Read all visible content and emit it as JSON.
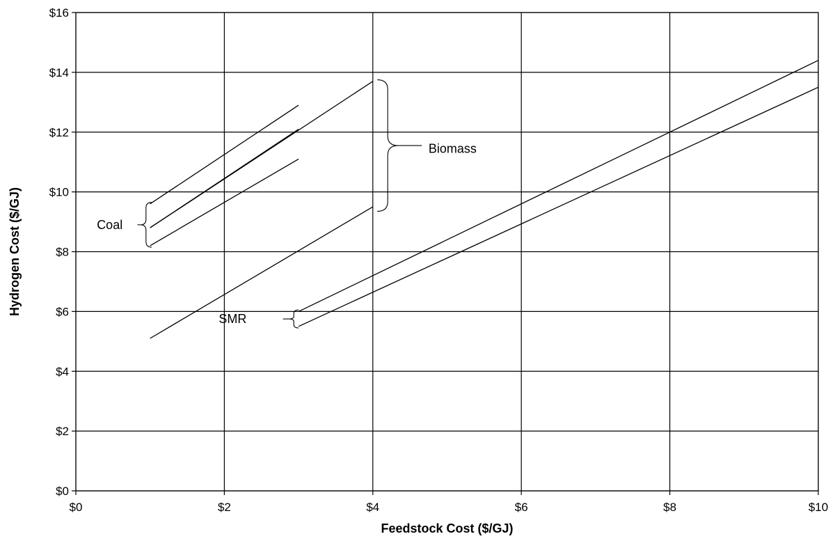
{
  "chart_data": {
    "type": "line",
    "title": "",
    "xlabel": "Feedstock Cost ($/GJ)",
    "ylabel": "Hydrogen Cost ($/GJ)",
    "xlim": [
      0,
      10
    ],
    "ylim": [
      0,
      16
    ],
    "x_ticks": [
      0,
      2,
      4,
      6,
      8,
      10
    ],
    "x_tick_labels": [
      "$0",
      "$2",
      "$4",
      "$6",
      "$8",
      "$10"
    ],
    "y_ticks": [
      0,
      2,
      4,
      6,
      8,
      10,
      12,
      14,
      16
    ],
    "y_tick_labels": [
      "$0",
      "$2",
      "$4",
      "$6",
      "$8",
      "$10",
      "$12",
      "$14",
      "$16"
    ],
    "grid": true,
    "legend": "none",
    "series": [
      {
        "group": "Coal",
        "x": [
          1,
          3
        ],
        "y": [
          9.6,
          12.9
        ]
      },
      {
        "group": "Coal",
        "x": [
          1,
          3
        ],
        "y": [
          8.8,
          12.1
        ]
      },
      {
        "group": "Coal",
        "x": [
          1,
          3
        ],
        "y": [
          8.2,
          11.1
        ]
      },
      {
        "group": "Biomass",
        "x": [
          1,
          4
        ],
        "y": [
          5.1,
          9.5
        ]
      },
      {
        "group": "Biomass",
        "x": [
          1,
          4
        ],
        "y": [
          8.8,
          13.7
        ]
      },
      {
        "group": "SMR",
        "x": [
          3,
          10
        ],
        "y": [
          6.0,
          14.4
        ]
      },
      {
        "group": "SMR",
        "x": [
          3,
          10
        ],
        "y": [
          5.5,
          13.5
        ]
      }
    ],
    "annotations": [
      {
        "text": "Coal",
        "x": 0.63,
        "y": 8.9
      },
      {
        "text": "Biomass",
        "x": 4.75,
        "y": 11.45
      },
      {
        "text": "SMR",
        "x": 2.3,
        "y": 5.75
      }
    ]
  }
}
